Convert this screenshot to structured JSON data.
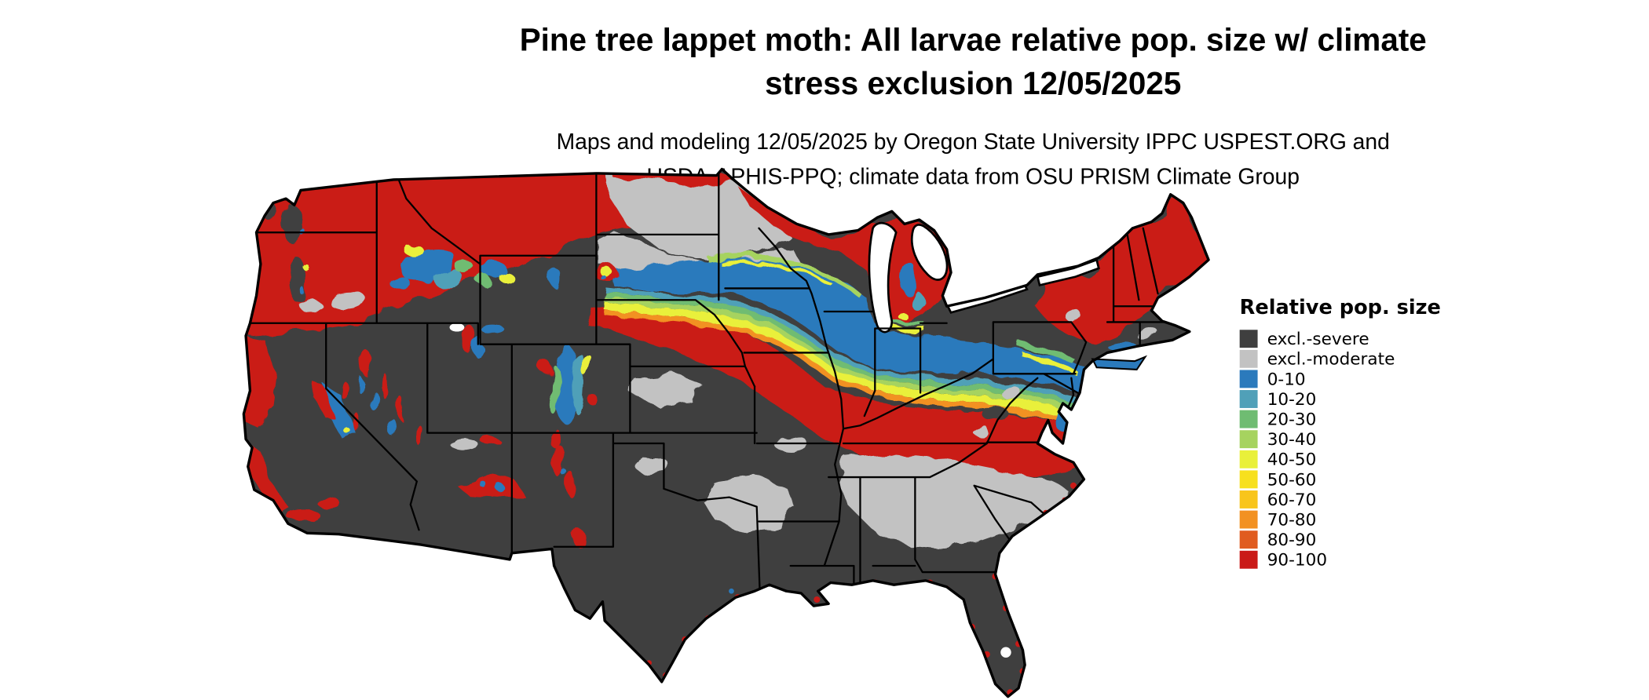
{
  "title": {
    "line1": "Pine tree lappet moth: All larvae relative pop. size w/ climate",
    "line2": "stress exclusion 12/05/2025"
  },
  "subtitle": {
    "line1": "Maps and modeling 12/05/2025 by Oregon State University IPPC USPEST.ORG and",
    "line2": "USDA-APHIS-PPQ; climate data from OSU PRISM Climate Group"
  },
  "legend": {
    "title": "Relative pop. size",
    "items": [
      {
        "key": "excl_severe",
        "label": "excl.-severe",
        "color": "#3f3f3f"
      },
      {
        "key": "excl_moderate",
        "label": "excl.-moderate",
        "color": "#c2c2c2"
      },
      {
        "key": "v0_10",
        "label": "0-10",
        "color": "#2b7abc"
      },
      {
        "key": "v10_20",
        "label": "10-20",
        "color": "#50a0b8"
      },
      {
        "key": "v20_30",
        "label": "20-30",
        "color": "#6fbc72"
      },
      {
        "key": "v30_40",
        "label": "30-40",
        "color": "#a6d35f"
      },
      {
        "key": "v40_50",
        "label": "40-50",
        "color": "#e9f03a"
      },
      {
        "key": "v50_60",
        "label": "50-60",
        "color": "#f7e01e"
      },
      {
        "key": "v60_70",
        "label": "60-70",
        "color": "#f8c51c"
      },
      {
        "key": "v70_80",
        "label": "70-80",
        "color": "#f29122"
      },
      {
        "key": "v80_90",
        "label": "80-90",
        "color": "#e05c20"
      },
      {
        "key": "v90_100",
        "label": "90-100",
        "color": "#ca1a17"
      }
    ]
  },
  "map": {
    "area": "Continental United States",
    "background": "#ffffff",
    "boundary_color": "#000000"
  }
}
